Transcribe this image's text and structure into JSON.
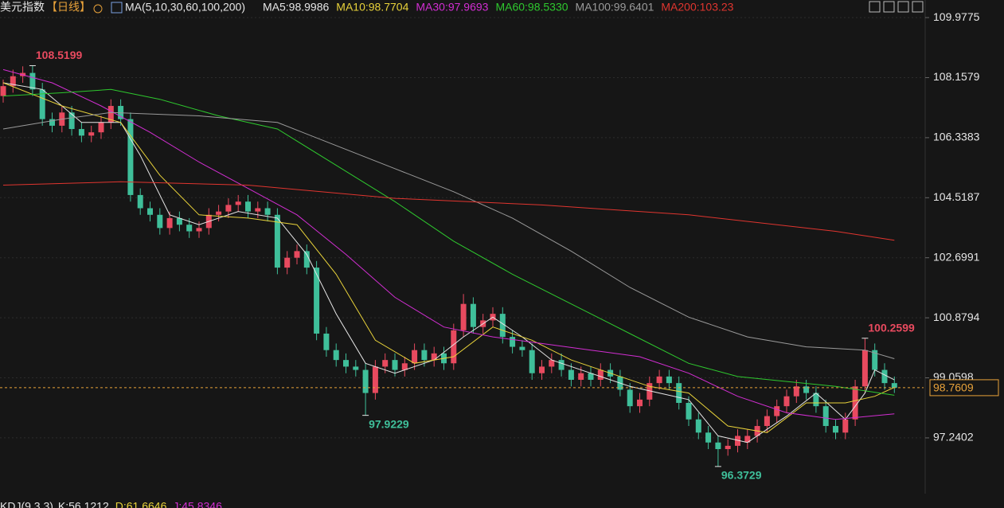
{
  "chart_data": {
    "type": "candlestick",
    "title": "美元指数",
    "period": "【日线】",
    "indicator": "MA(5,10,30,60,100,200)",
    "open": [
      107.6,
      107.9,
      108.2,
      108.3,
      107.8,
      106.9,
      106.7,
      107.1,
      106.6,
      106.4,
      106.5,
      106.8,
      107.3,
      106.9,
      104.6,
      104.2,
      104.0,
      103.6,
      103.9,
      103.7,
      103.5,
      103.6,
      104.0,
      104.1,
      104.3,
      104.4,
      104.1,
      104.2,
      104.0,
      102.4,
      102.7,
      102.9,
      102.4,
      100.4,
      99.9,
      99.6,
      99.4,
      99.3,
      98.6,
      99.4,
      99.6,
      99.3,
      99.5,
      99.9,
      99.6,
      99.8,
      99.5,
      100.5,
      101.3,
      100.6,
      100.8,
      101.0,
      100.3,
      100.0,
      99.9,
      99.2,
      99.4,
      99.6,
      99.3,
      99.0,
      99.2,
      99.0,
      99.3,
      99.1,
      98.7,
      98.2,
      98.4,
      98.9,
      99.1,
      98.9,
      98.3,
      97.8,
      97.4,
      97.1,
      96.9,
      97.0,
      97.1,
      97.3,
      97.6,
      97.9,
      98.2,
      98.5,
      98.8,
      98.6,
      98.2,
      97.6,
      97.4,
      97.8,
      98.8,
      99.9,
      99.3,
      98.9
    ],
    "high": [
      108.1,
      108.4,
      108.5,
      108.5199,
      108.0,
      107.1,
      107.3,
      107.3,
      106.8,
      106.7,
      107.0,
      107.5,
      107.5,
      107.1,
      104.8,
      104.4,
      104.2,
      104.1,
      104.1,
      103.9,
      103.8,
      104.2,
      104.3,
      104.5,
      104.6,
      104.6,
      104.4,
      104.4,
      104.2,
      102.9,
      103.1,
      103.1,
      102.6,
      100.6,
      100.1,
      99.8,
      99.6,
      99.5,
      99.6,
      99.8,
      99.8,
      99.7,
      100.1,
      100.1,
      100.0,
      100.0,
      100.7,
      101.6,
      101.5,
      101.0,
      101.2,
      101.2,
      100.5,
      100.2,
      100.1,
      99.6,
      99.8,
      99.8,
      99.5,
      99.4,
      99.4,
      99.5,
      99.5,
      99.3,
      98.9,
      98.6,
      99.1,
      99.3,
      99.3,
      99.1,
      98.5,
      98.0,
      97.6,
      97.3,
      97.2,
      97.5,
      97.5,
      97.8,
      98.1,
      98.4,
      98.7,
      99.0,
      99.0,
      98.8,
      98.4,
      97.8,
      98.0,
      99.0,
      100.2599,
      100.1,
      99.5,
      99.1
    ],
    "low": [
      107.4,
      107.7,
      108.0,
      107.6,
      106.7,
      106.5,
      106.5,
      106.4,
      106.2,
      106.2,
      106.3,
      106.6,
      106.7,
      104.4,
      104.0,
      103.8,
      103.4,
      103.4,
      103.5,
      103.3,
      103.3,
      103.4,
      103.8,
      103.9,
      104.1,
      103.9,
      103.9,
      103.8,
      102.2,
      102.2,
      102.5,
      102.2,
      100.2,
      99.7,
      99.4,
      99.2,
      99.1,
      97.9229,
      98.4,
      99.2,
      99.1,
      99.1,
      99.3,
      99.4,
      99.4,
      99.3,
      99.3,
      100.3,
      100.4,
      100.4,
      100.6,
      100.1,
      99.8,
      99.7,
      99.0,
      99.0,
      99.2,
      99.1,
      98.8,
      98.8,
      98.8,
      98.8,
      98.9,
      98.5,
      98.0,
      98.0,
      98.2,
      98.7,
      98.7,
      98.1,
      97.6,
      97.2,
      96.9,
      96.3729,
      96.7,
      96.8,
      96.9,
      97.1,
      97.4,
      97.7,
      98.0,
      98.3,
      98.4,
      98.0,
      97.4,
      97.2,
      97.2,
      97.6,
      98.6,
      99.1,
      98.7,
      98.6
    ],
    "close": [
      107.9,
      108.2,
      108.3,
      107.8,
      106.9,
      106.7,
      107.1,
      106.6,
      106.4,
      106.5,
      106.8,
      107.3,
      106.9,
      104.6,
      104.2,
      104.0,
      103.6,
      103.9,
      103.7,
      103.5,
      103.6,
      104.0,
      104.1,
      104.3,
      104.4,
      104.1,
      104.2,
      104.0,
      102.4,
      102.7,
      102.9,
      102.4,
      100.4,
      99.9,
      99.6,
      99.4,
      99.3,
      98.6,
      99.4,
      99.6,
      99.3,
      99.5,
      99.9,
      99.6,
      99.8,
      99.5,
      100.5,
      101.3,
      100.6,
      100.8,
      101.0,
      100.3,
      100.0,
      99.9,
      99.2,
      99.4,
      99.6,
      99.3,
      99.0,
      99.2,
      99.0,
      99.3,
      99.1,
      98.7,
      98.2,
      98.4,
      98.9,
      99.1,
      98.9,
      98.3,
      97.8,
      97.4,
      97.1,
      96.9,
      97.0,
      97.3,
      97.3,
      97.6,
      97.9,
      98.2,
      98.5,
      98.8,
      98.6,
      98.2,
      97.6,
      97.4,
      97.8,
      98.8,
      99.9,
      99.3,
      98.9,
      98.76
    ],
    "up_color": "#e84a5f",
    "down_color": "#3fbf9a",
    "series": [
      {
        "name": "MA5:98.9986",
        "color": "#e6e6e6",
        "x": [
          0,
          4,
          8,
          12,
          14,
          17,
          20,
          24,
          28,
          31,
          34,
          37,
          40,
          44,
          47,
          50,
          53,
          56,
          60,
          64,
          67,
          70,
          73,
          76,
          80,
          83,
          86,
          88,
          89,
          91
        ],
        "values": [
          108.0,
          107.8,
          106.8,
          106.8,
          105.8,
          104.0,
          103.7,
          104.1,
          103.9,
          102.8,
          101.0,
          99.5,
          99.2,
          99.6,
          100.3,
          100.9,
          100.3,
          99.6,
          99.2,
          98.8,
          98.6,
          98.4,
          97.3,
          97.1,
          97.9,
          98.6,
          97.8,
          98.6,
          99.3,
          98.9986
        ]
      },
      {
        "name": "MA10:98.7704",
        "color": "#e8d23a",
        "x": [
          0,
          6,
          12,
          16,
          20,
          25,
          30,
          34,
          38,
          42,
          46,
          50,
          54,
          58,
          62,
          66,
          70,
          74,
          78,
          82,
          86,
          89,
          91
        ],
        "values": [
          108.0,
          107.3,
          106.8,
          105.2,
          104.0,
          103.9,
          103.7,
          102.2,
          100.2,
          99.5,
          99.7,
          100.6,
          100.2,
          99.6,
          99.2,
          98.8,
          98.6,
          97.6,
          97.4,
          98.3,
          98.3,
          98.5,
          98.7704
        ]
      },
      {
        "name": "MA30:97.9693",
        "color": "#d22ed2",
        "x": [
          0,
          5,
          10,
          15,
          20,
          25,
          30,
          35,
          40,
          45,
          50,
          55,
          60,
          65,
          70,
          75,
          80,
          85,
          91
        ],
        "values": [
          108.4,
          108.0,
          107.3,
          106.5,
          105.6,
          104.8,
          104.0,
          102.8,
          101.5,
          100.6,
          100.3,
          100.1,
          99.9,
          99.7,
          99.2,
          98.5,
          98.0,
          97.8,
          97.9693
        ]
      },
      {
        "name": "MA60:98.5330",
        "color": "#2ec82e",
        "x": [
          0,
          6,
          11,
          16,
          22,
          28,
          34,
          40,
          46,
          52,
          58,
          64,
          70,
          75,
          80,
          85,
          91
        ],
        "values": [
          107.6,
          107.7,
          107.8,
          107.5,
          107.0,
          106.6,
          105.5,
          104.4,
          103.2,
          102.2,
          101.3,
          100.4,
          99.5,
          99.1,
          98.95,
          98.8,
          98.533
        ]
      },
      {
        "name": "MA100:99.6401",
        "color": "#9a9a9a",
        "x": [
          0,
          6,
          11,
          20,
          28,
          34,
          40,
          46,
          52,
          58,
          64,
          70,
          76,
          82,
          88,
          91
        ],
        "values": [
          106.6,
          106.9,
          107.1,
          107.0,
          106.8,
          106.1,
          105.4,
          104.7,
          103.9,
          102.9,
          101.8,
          100.9,
          100.3,
          100.0,
          99.9,
          99.6401
        ]
      },
      {
        "name": "MA200:103.23",
        "color": "#e0352f",
        "x": [
          0,
          12,
          25,
          40,
          55,
          70,
          85,
          91
        ],
        "values": [
          104.9,
          105.0,
          104.9,
          104.5,
          104.3,
          104.0,
          103.5,
          103.23
        ]
      }
    ],
    "ylim": [
      95.67,
      110.51
    ],
    "yticks": [
      97.2402,
      99.0598,
      100.8794,
      102.6991,
      104.5187,
      106.3383,
      108.1579,
      109.9775
    ],
    "grid": true,
    "annotations": [
      {
        "index": 3,
        "value": 108.5199,
        "color": "#e84a5f",
        "position": "above"
      },
      {
        "index": 37,
        "value": 97.9229,
        "color": "#3fbf9a",
        "position": "below"
      },
      {
        "index": 73,
        "value": 96.3729,
        "color": "#3fbf9a",
        "position": "below"
      },
      {
        "index": 88,
        "value": 100.2599,
        "color": "#e84a5f",
        "position": "above"
      }
    ],
    "last_price": {
      "value": 98.7609,
      "color": "#e8a23a"
    },
    "subchart": {
      "name": "KDJ(9,3,3)",
      "items": [
        {
          "label": "K:56.1212",
          "color": "#e6e6e6"
        },
        {
          "label": "D:61.6646",
          "color": "#e8d23a"
        },
        {
          "label": "J:45.8346",
          "color": "#d22ed2"
        }
      ]
    }
  }
}
